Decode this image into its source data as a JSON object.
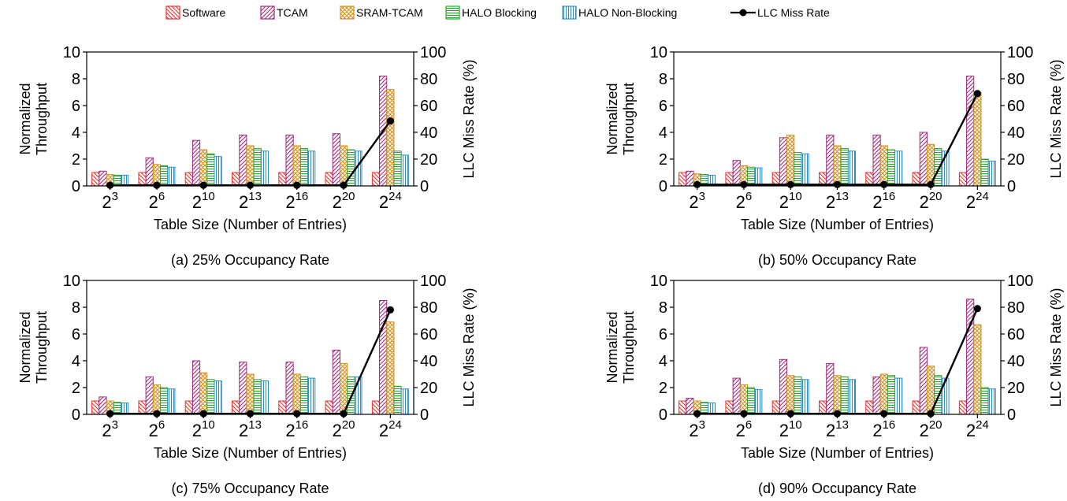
{
  "legend": [
    {
      "name": "Software",
      "color": "#e8322b",
      "pattern": "diag-down"
    },
    {
      "name": "TCAM",
      "color": "#a0287e",
      "pattern": "diag-up"
    },
    {
      "name": "SRAM-TCAM",
      "color": "#d4901e",
      "pattern": "cross"
    },
    {
      "name": "HALO Blocking",
      "color": "#2ea32e",
      "pattern": "horizontal"
    },
    {
      "name": "HALO Non-Blocking",
      "color": "#2b8fcf",
      "pattern": "vertical"
    },
    {
      "name": "LLC Miss Rate",
      "color": "#000000",
      "pattern": "line-dot"
    }
  ],
  "chart_data": [
    {
      "type": "bar",
      "caption": "(a) 25% Occupancy Rate",
      "xlabel": "Table Size (Number of Entries)",
      "ylabel": [
        "Normalized",
        "Throughput"
      ],
      "y2label": "LLC Miss Rate (%)",
      "ylim": [
        0,
        10
      ],
      "yticks": [
        0,
        2,
        4,
        6,
        8,
        10
      ],
      "y2lim": [
        0,
        100
      ],
      "y2ticks": [
        0,
        20,
        40,
        60,
        80,
        100
      ],
      "categories": [
        {
          "base": "2",
          "exp": "3"
        },
        {
          "base": "2",
          "exp": "6"
        },
        {
          "base": "2",
          "exp": "10"
        },
        {
          "base": "2",
          "exp": "13"
        },
        {
          "base": "2",
          "exp": "16"
        },
        {
          "base": "2",
          "exp": "20"
        },
        {
          "base": "2",
          "exp": "24"
        }
      ],
      "series": [
        {
          "name": "Software",
          "values": [
            1.0,
            1.0,
            1.0,
            1.0,
            1.0,
            1.0,
            1.0
          ]
        },
        {
          "name": "TCAM",
          "values": [
            1.1,
            2.1,
            3.4,
            3.8,
            3.8,
            3.9,
            8.2
          ]
        },
        {
          "name": "SRAM-TCAM",
          "values": [
            0.85,
            1.6,
            2.7,
            3.0,
            3.0,
            3.0,
            7.2
          ]
        },
        {
          "name": "HALO Blocking",
          "values": [
            0.8,
            1.5,
            2.4,
            2.8,
            2.8,
            2.7,
            2.6
          ]
        },
        {
          "name": "HALO Non-Blocking",
          "values": [
            0.8,
            1.4,
            2.2,
            2.6,
            2.6,
            2.6,
            2.3
          ]
        }
      ],
      "line": {
        "name": "LLC Miss Rate",
        "values": [
          0.5,
          0.5,
          0.5,
          0.5,
          0.5,
          0.5,
          48.5
        ]
      }
    },
    {
      "type": "bar",
      "caption": "(b) 50% Occupancy Rate",
      "xlabel": "Table Size (Number of Entries)",
      "ylabel": [
        "Normalized",
        "Throughput"
      ],
      "y2label": "LLC Miss Rate (%)",
      "ylim": [
        0,
        10
      ],
      "yticks": [
        0,
        2,
        4,
        6,
        8,
        10
      ],
      "y2lim": [
        0,
        100
      ],
      "y2ticks": [
        0,
        20,
        40,
        60,
        80,
        100
      ],
      "categories": [
        {
          "base": "2",
          "exp": "3"
        },
        {
          "base": "2",
          "exp": "6"
        },
        {
          "base": "2",
          "exp": "10"
        },
        {
          "base": "2",
          "exp": "13"
        },
        {
          "base": "2",
          "exp": "16"
        },
        {
          "base": "2",
          "exp": "20"
        },
        {
          "base": "2",
          "exp": "24"
        }
      ],
      "series": [
        {
          "name": "Software",
          "values": [
            1.0,
            1.0,
            1.0,
            1.0,
            1.0,
            1.0,
            1.0
          ]
        },
        {
          "name": "TCAM",
          "values": [
            1.1,
            1.9,
            3.6,
            3.8,
            3.8,
            4.0,
            8.2
          ]
        },
        {
          "name": "SRAM-TCAM",
          "values": [
            0.9,
            1.5,
            3.8,
            3.0,
            3.0,
            3.1,
            7.0
          ]
        },
        {
          "name": "HALO Blocking",
          "values": [
            0.85,
            1.4,
            2.5,
            2.8,
            2.7,
            2.8,
            2.0
          ]
        },
        {
          "name": "HALO Non-Blocking",
          "values": [
            0.8,
            1.35,
            2.4,
            2.6,
            2.6,
            2.6,
            1.85
          ]
        }
      ],
      "line": {
        "name": "LLC Miss Rate",
        "values": [
          1.0,
          1.0,
          1.0,
          1.0,
          1.0,
          1.0,
          69.0
        ]
      }
    },
    {
      "type": "bar",
      "caption": "(c) 75% Occupancy Rate",
      "xlabel": "Table Size (Number of Entries)",
      "ylabel": [
        "Normalized",
        "Throughput"
      ],
      "y2label": "LLC Miss Rate (%)",
      "ylim": [
        0,
        10
      ],
      "yticks": [
        0,
        2,
        4,
        6,
        8,
        10
      ],
      "y2lim": [
        0,
        100
      ],
      "y2ticks": [
        0,
        20,
        40,
        60,
        80,
        100
      ],
      "categories": [
        {
          "base": "2",
          "exp": "3"
        },
        {
          "base": "2",
          "exp": "6"
        },
        {
          "base": "2",
          "exp": "10"
        },
        {
          "base": "2",
          "exp": "13"
        },
        {
          "base": "2",
          "exp": "16"
        },
        {
          "base": "2",
          "exp": "20"
        },
        {
          "base": "2",
          "exp": "24"
        }
      ],
      "series": [
        {
          "name": "Software",
          "values": [
            1.0,
            1.0,
            1.0,
            1.0,
            1.0,
            1.0,
            1.0
          ]
        },
        {
          "name": "TCAM",
          "values": [
            1.3,
            2.8,
            4.0,
            3.9,
            3.9,
            4.8,
            8.5
          ]
        },
        {
          "name": "SRAM-TCAM",
          "values": [
            1.0,
            2.2,
            3.1,
            3.0,
            3.0,
            3.8,
            6.9
          ]
        },
        {
          "name": "HALO Blocking",
          "values": [
            0.9,
            2.0,
            2.6,
            2.6,
            2.8,
            2.8,
            2.1
          ]
        },
        {
          "name": "HALO Non-Blocking",
          "values": [
            0.85,
            1.9,
            2.5,
            2.5,
            2.7,
            2.8,
            1.9
          ]
        }
      ],
      "line": {
        "name": "LLC Miss Rate",
        "values": [
          0.5,
          0.5,
          0.5,
          0.5,
          0.5,
          0.5,
          78.0
        ]
      }
    },
    {
      "type": "bar",
      "caption": "(d) 90% Occupancy Rate",
      "xlabel": "Table Size (Number of Entries)",
      "ylabel": [
        "Normalized",
        "Throughput"
      ],
      "y2label": "LLC Miss Rate (%)",
      "ylim": [
        0,
        10
      ],
      "yticks": [
        0,
        2,
        4,
        6,
        8,
        10
      ],
      "y2lim": [
        0,
        100
      ],
      "y2ticks": [
        0,
        20,
        40,
        60,
        80,
        100
      ],
      "categories": [
        {
          "base": "2",
          "exp": "3"
        },
        {
          "base": "2",
          "exp": "6"
        },
        {
          "base": "2",
          "exp": "10"
        },
        {
          "base": "2",
          "exp": "13"
        },
        {
          "base": "2",
          "exp": "16"
        },
        {
          "base": "2",
          "exp": "20"
        },
        {
          "base": "2",
          "exp": "24"
        }
      ],
      "series": [
        {
          "name": "Software",
          "values": [
            1.0,
            1.0,
            1.0,
            1.0,
            1.0,
            1.0,
            1.0
          ]
        },
        {
          "name": "TCAM",
          "values": [
            1.2,
            2.7,
            4.1,
            3.8,
            2.8,
            5.0,
            8.6
          ]
        },
        {
          "name": "SRAM-TCAM",
          "values": [
            1.0,
            2.2,
            2.9,
            2.9,
            3.0,
            3.6,
            6.7
          ]
        },
        {
          "name": "HALO Blocking",
          "values": [
            0.9,
            2.0,
            2.8,
            2.8,
            2.9,
            2.9,
            2.0
          ]
        },
        {
          "name": "HALO Non-Blocking",
          "values": [
            0.85,
            1.85,
            2.6,
            2.6,
            2.7,
            2.7,
            1.9
          ]
        }
      ],
      "line": {
        "name": "LLC Miss Rate",
        "values": [
          0.5,
          0.5,
          0.5,
          0.5,
          0.5,
          0.5,
          79.0
        ]
      }
    }
  ]
}
